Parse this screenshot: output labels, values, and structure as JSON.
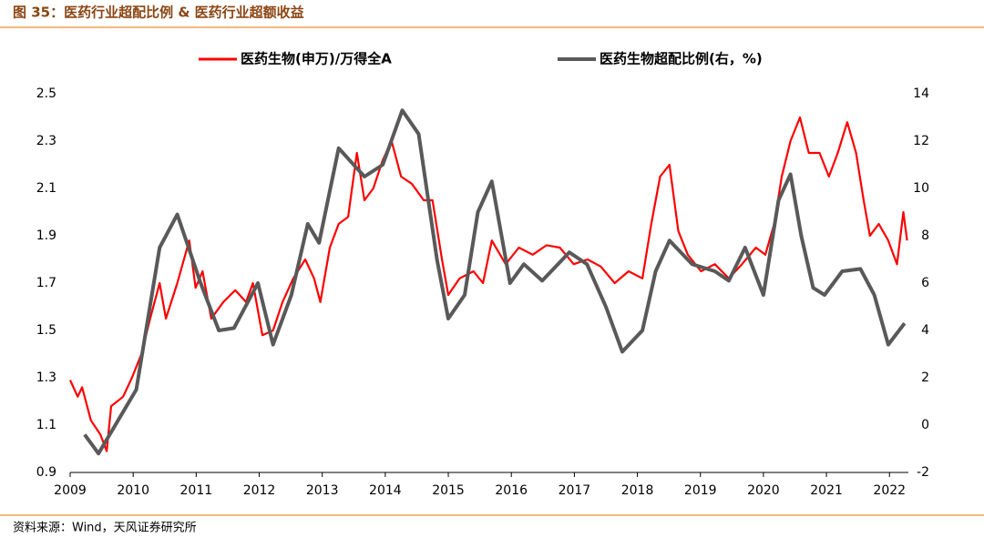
{
  "chart_data": {
    "type": "line",
    "title": "图 35：医药行业超配比例 & 医药行业超额收益",
    "source": "资料来源：Wind，天风证券研究所",
    "xlim": [
      2009,
      2022.3
    ],
    "xticks": [
      2009,
      2010,
      2011,
      2012,
      2013,
      2014,
      2015,
      2016,
      2017,
      2018,
      2019,
      2020,
      2021,
      2022
    ],
    "ylim": [
      0.9,
      2.5
    ],
    "yticks": [
      0.9,
      1.1,
      1.3,
      1.5,
      1.7,
      1.9,
      2.1,
      2.3,
      2.5
    ],
    "y2lim": [
      -2,
      14
    ],
    "y2ticks": [
      -2,
      0,
      2,
      4,
      6,
      8,
      10,
      12,
      14
    ],
    "series": [
      {
        "name": "医药生物(申万)/万得全A",
        "color": "#ff0000",
        "x": [
          2009.0,
          2009.12,
          2009.19,
          2009.33,
          2009.48,
          2009.58,
          2009.65,
          2009.84,
          2009.98,
          2010.13,
          2010.27,
          2010.42,
          2010.52,
          2010.7,
          2010.89,
          2010.99,
          2011.1,
          2011.24,
          2011.43,
          2011.62,
          2011.79,
          2011.9,
          2012.05,
          2012.22,
          2012.37,
          2012.54,
          2012.73,
          2012.87,
          2012.97,
          2013.12,
          2013.26,
          2013.41,
          2013.55,
          2013.67,
          2013.81,
          2013.96,
          2014.1,
          2014.25,
          2014.42,
          2014.61,
          2014.75,
          2014.9,
          2015.0,
          2015.18,
          2015.4,
          2015.55,
          2015.69,
          2015.91,
          2016.12,
          2016.34,
          2016.56,
          2016.77,
          2016.99,
          2017.21,
          2017.42,
          2017.64,
          2017.86,
          2018.08,
          2018.22,
          2018.36,
          2018.51,
          2018.65,
          2018.8,
          2019.01,
          2019.23,
          2019.45,
          2019.66,
          2019.88,
          2020.03,
          2020.17,
          2020.29,
          2020.43,
          2020.58,
          2020.72,
          2020.89,
          2021.04,
          2021.18,
          2021.33,
          2021.47,
          2021.59,
          2021.69,
          2021.83,
          2021.98,
          2022.12,
          2022.22,
          2022.28
        ],
        "values": [
          1.29,
          1.22,
          1.26,
          1.12,
          1.06,
          0.99,
          1.18,
          1.22,
          1.3,
          1.4,
          1.55,
          1.7,
          1.55,
          1.7,
          1.88,
          1.68,
          1.75,
          1.55,
          1.62,
          1.67,
          1.62,
          1.7,
          1.48,
          1.5,
          1.62,
          1.72,
          1.8,
          1.72,
          1.62,
          1.85,
          1.95,
          1.98,
          2.25,
          2.05,
          2.1,
          2.22,
          2.3,
          2.15,
          2.12,
          2.05,
          2.05,
          1.8,
          1.65,
          1.72,
          1.75,
          1.7,
          1.88,
          1.78,
          1.85,
          1.82,
          1.86,
          1.85,
          1.78,
          1.8,
          1.77,
          1.7,
          1.75,
          1.72,
          1.95,
          2.15,
          2.2,
          1.92,
          1.82,
          1.75,
          1.78,
          1.72,
          1.78,
          1.85,
          1.82,
          1.95,
          2.15,
          2.3,
          2.4,
          2.25,
          2.25,
          2.15,
          2.25,
          2.38,
          2.25,
          2.05,
          1.9,
          1.95,
          1.88,
          1.78,
          2.0,
          1.88
        ]
      },
      {
        "name": "医药生物超配比例(右，%)",
        "color": "#595959",
        "axis": "y2",
        "x": [
          2009.23,
          2009.45,
          2010.05,
          2010.42,
          2010.7,
          2011.07,
          2011.36,
          2011.6,
          2011.98,
          2012.22,
          2012.51,
          2012.77,
          2012.95,
          2013.26,
          2013.67,
          2013.96,
          2014.27,
          2014.53,
          2014.82,
          2015.0,
          2015.26,
          2015.47,
          2015.69,
          2015.98,
          2016.2,
          2016.49,
          2016.92,
          2017.2,
          2017.5,
          2017.76,
          2018.08,
          2018.29,
          2018.51,
          2018.87,
          2019.23,
          2019.45,
          2019.71,
          2020.0,
          2020.24,
          2020.43,
          2020.6,
          2020.79,
          2020.97,
          2021.25,
          2021.54,
          2021.76,
          2021.98,
          2022.24
        ],
        "values": [
          -0.4,
          -1.2,
          1.5,
          7.5,
          8.9,
          6.0,
          4.0,
          4.1,
          6.0,
          3.4,
          5.5,
          8.5,
          7.7,
          11.7,
          10.5,
          11.0,
          13.3,
          12.3,
          7.0,
          4.5,
          5.5,
          9.0,
          10.3,
          6.0,
          6.8,
          6.1,
          7.3,
          6.8,
          5.0,
          3.1,
          4.0,
          6.5,
          7.8,
          6.8,
          6.5,
          6.1,
          7.5,
          5.5,
          9.5,
          10.6,
          8.0,
          5.8,
          5.5,
          6.5,
          6.6,
          5.5,
          3.4,
          4.3
        ]
      }
    ]
  }
}
